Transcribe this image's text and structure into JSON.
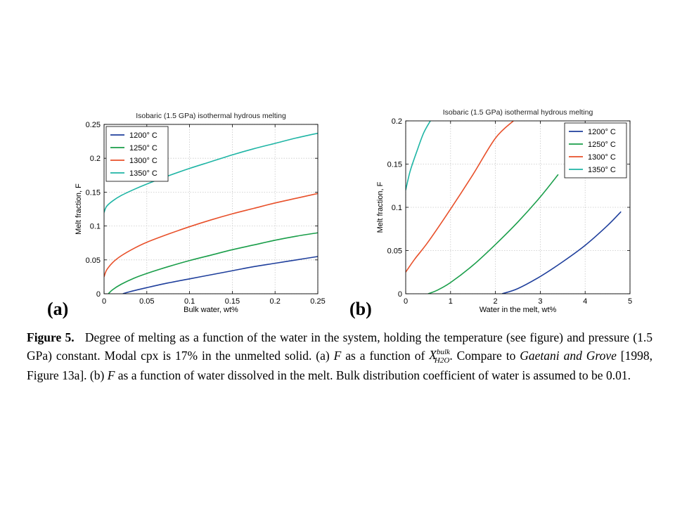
{
  "panels": {
    "a": {
      "letter": "(a)"
    },
    "b": {
      "letter": "(b)"
    }
  },
  "caption": {
    "label": "Figure 5.",
    "text_1": "Degree of melting as a function of the water in the system, holding the temperature (see figure) and pressure (1.5 GPa) constant. Modal cpx is 17% in the unmelted solid. (a) ",
    "F_symbol": "F",
    "text_2": " as a function of ",
    "math_base": "X",
    "math_sup": "bulk",
    "math_sub": "H2O",
    "text_3": ". Compare to ",
    "citation_italic": "Gaetani and Grove",
    "text_4": " [1998, Figure 13a]. (b) ",
    "text_5": " as a function of water dissolved in the melt. Bulk distribution coefficient of water is assumed to be 0.01."
  },
  "colors": {
    "1200": "#1f3f9c",
    "1250": "#1a9e4a",
    "1300": "#e8502a",
    "1350": "#1fb5a5"
  },
  "chart_data": [
    {
      "type": "line",
      "title": "Isobaric (1.5 GPa) isothermal hydrous melting",
      "xlabel": "Bulk water, wt%",
      "ylabel": "Melt fraction, F",
      "xlim": [
        0,
        0.25
      ],
      "ylim": [
        0,
        0.25
      ],
      "xticks": [
        "0",
        "0.05",
        "0.1",
        "0.15",
        "0.2",
        "0.25"
      ],
      "yticks": [
        "0",
        "0.05",
        "0.1",
        "0.15",
        "0.2",
        "0.25"
      ],
      "grid": true,
      "legend": "top-left",
      "series": [
        {
          "name": "1200° C",
          "color_key": "1200",
          "x": [
            0.022,
            0.03,
            0.05,
            0.075,
            0.1,
            0.125,
            0.15,
            0.175,
            0.2,
            0.225,
            0.25
          ],
          "y": [
            0.0,
            0.003,
            0.009,
            0.016,
            0.022,
            0.028,
            0.034,
            0.04,
            0.045,
            0.05,
            0.055
          ]
        },
        {
          "name": "1250° C",
          "color_key": "1250",
          "x": [
            0.005,
            0.01,
            0.02,
            0.035,
            0.05,
            0.075,
            0.1,
            0.125,
            0.15,
            0.175,
            0.2,
            0.225,
            0.25
          ],
          "y": [
            0.0,
            0.006,
            0.014,
            0.023,
            0.03,
            0.04,
            0.049,
            0.057,
            0.065,
            0.072,
            0.079,
            0.085,
            0.09
          ]
        },
        {
          "name": "1300° C",
          "color_key": "1300",
          "x": [
            0.0,
            0.003,
            0.01,
            0.02,
            0.035,
            0.05,
            0.075,
            0.1,
            0.125,
            0.15,
            0.175,
            0.2,
            0.225,
            0.25
          ],
          "y": [
            0.025,
            0.035,
            0.046,
            0.056,
            0.067,
            0.076,
            0.088,
            0.099,
            0.109,
            0.118,
            0.126,
            0.134,
            0.141,
            0.148
          ]
        },
        {
          "name": "1350° C",
          "color_key": "1350",
          "x": [
            0.0,
            0.003,
            0.01,
            0.02,
            0.035,
            0.05,
            0.075,
            0.1,
            0.125,
            0.15,
            0.175,
            0.2,
            0.225,
            0.25
          ],
          "y": [
            0.12,
            0.129,
            0.137,
            0.145,
            0.154,
            0.162,
            0.174,
            0.185,
            0.195,
            0.205,
            0.214,
            0.222,
            0.23,
            0.237
          ]
        }
      ]
    },
    {
      "type": "line",
      "title": "Isobaric (1.5 GPa) isothermal hydrous melting",
      "xlabel": "Water in the melt, wt%",
      "ylabel": "Melt fraction, F",
      "xlim": [
        0,
        5
      ],
      "ylim": [
        0,
        0.2
      ],
      "xticks": [
        "0",
        "1",
        "2",
        "3",
        "4",
        "5"
      ],
      "yticks": [
        "0",
        "0.05",
        "0.1",
        "0.15",
        "0.2"
      ],
      "grid": true,
      "legend": "top-right",
      "series": [
        {
          "name": "1200° C",
          "color_key": "1200",
          "x": [
            2.15,
            2.5,
            3.0,
            3.5,
            4.0,
            4.5,
            4.8
          ],
          "y": [
            0.0,
            0.006,
            0.02,
            0.037,
            0.056,
            0.079,
            0.095
          ]
        },
        {
          "name": "1250° C",
          "color_key": "1250",
          "x": [
            0.5,
            0.7,
            1.0,
            1.5,
            2.0,
            2.5,
            3.0,
            3.4
          ],
          "y": [
            0.0,
            0.004,
            0.013,
            0.033,
            0.057,
            0.083,
            0.112,
            0.138
          ]
        },
        {
          "name": "1300° C",
          "color_key": "1300",
          "x": [
            0.0,
            0.2,
            0.5,
            1.0,
            1.5,
            2.0,
            2.4
          ],
          "y": [
            0.025,
            0.04,
            0.06,
            0.098,
            0.138,
            0.18,
            0.2
          ]
        },
        {
          "name": "1350° C",
          "color_key": "1350",
          "x": [
            0.0,
            0.1,
            0.25,
            0.4,
            0.55
          ],
          "y": [
            0.12,
            0.142,
            0.165,
            0.186,
            0.2
          ]
        }
      ]
    }
  ]
}
